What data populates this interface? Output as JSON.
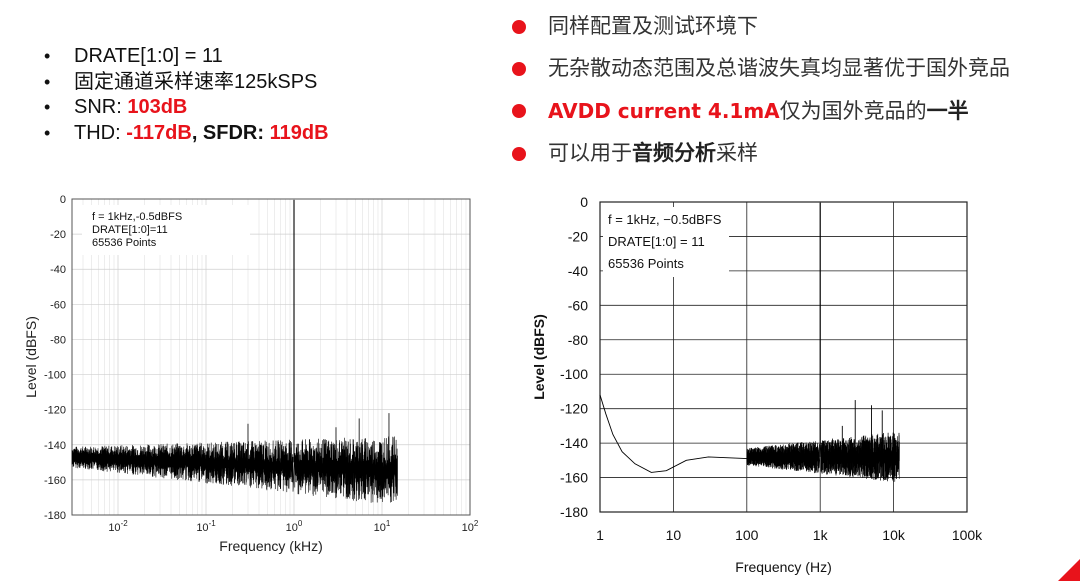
{
  "left_bullets": [
    {
      "label": "DRATE[1:0] = 11"
    },
    {
      "label": "固定通道采样速率125kSPS"
    },
    {
      "label": "SNR: ",
      "value": "103dB"
    },
    {
      "label_thd": "THD: ",
      "thd": "-117dB",
      "sep": ", SFDR: ",
      "sfdr": "119dB"
    }
  ],
  "right_bullets": [
    {
      "text": "同样配置及测试环境下"
    },
    {
      "text": "无杂散动态范围及总谐波失真均显著优于国外竞品"
    },
    {
      "pre": "AVDD current 4.1mA",
      "mid": "仅为国外竞品的",
      "strong": "一半"
    },
    {
      "pre": "可以用于",
      "strong": "音频分析",
      "post": "采样"
    }
  ],
  "colors": {
    "accent": "#e8131b",
    "trace": "#000000",
    "grid": "#cfcfcf"
  },
  "chart_data": [
    {
      "type": "line",
      "x_scale": "log",
      "xlabel": "Frequency (kHz)",
      "ylabel": "Level  (dBFS)",
      "xlim": [
        0.003,
        100
      ],
      "ylim": [
        -180,
        0
      ],
      "x_ticks": [
        "10-2",
        "10-1",
        "100",
        "101",
        "102"
      ],
      "x_tick_values": [
        0.01,
        0.1,
        1,
        10,
        100
      ],
      "y_ticks": [
        0,
        -20,
        -40,
        -60,
        -80,
        -100,
        -120,
        -140,
        -160,
        -180
      ],
      "grid": true,
      "annotation": [
        "f = 1kHz,-0.5dBFS",
        "DRATE[1:0]=11",
        "65536 Points"
      ],
      "series": [
        {
          "x": [
            0.003,
            0.005,
            0.01,
            0.02,
            0.05,
            0.1,
            0.2,
            0.5,
            0.9,
            1.0,
            1.1,
            2,
            5,
            10,
            15
          ],
          "values": [
            -140,
            -147,
            -150,
            -150,
            -151,
            -152,
            -153,
            -153,
            -150,
            -0.5,
            -150,
            -152,
            -152,
            -153,
            -153
          ]
        }
      ],
      "spurs": [
        {
          "x": 0.3,
          "y": -128
        },
        {
          "x": 3,
          "y": -130
        },
        {
          "x": 5.5,
          "y": -125
        },
        {
          "x": 12,
          "y": -122
        }
      ]
    },
    {
      "type": "line",
      "x_scale": "log",
      "xlabel": "Frequency (Hz)",
      "ylabel": "Level  (dBFS)",
      "xlim": [
        1,
        100000
      ],
      "ylim": [
        -180,
        0
      ],
      "x_ticks": [
        "1",
        "10",
        "100",
        "1k",
        "10k",
        "100k"
      ],
      "x_tick_values": [
        1,
        10,
        100,
        1000,
        10000,
        100000
      ],
      "y_ticks": [
        0,
        -20,
        -40,
        -60,
        -80,
        -100,
        -120,
        -140,
        -160,
        -180
      ],
      "grid": true,
      "annotation": [
        "f = 1kHz, −0.5dBFS",
        "DRATE[1:0] = 11",
        "65536 Points"
      ],
      "series": [
        {
          "x": [
            1,
            1.2,
            1.5,
            2,
            3,
            5,
            8,
            15,
            30,
            100,
            300,
            900,
            1000,
            1100,
            3000,
            8000,
            12000
          ],
          "values": [
            -112,
            -123,
            -135,
            -145,
            -152,
            -157,
            -156,
            -150,
            -148,
            -149,
            -148,
            -145,
            -0.5,
            -146,
            -149,
            -150,
            -150
          ]
        }
      ],
      "spurs": [
        {
          "x": 3000,
          "y": -115
        },
        {
          "x": 5000,
          "y": -118
        },
        {
          "x": 7000,
          "y": -121
        },
        {
          "x": 2000,
          "y": -130
        }
      ]
    }
  ]
}
